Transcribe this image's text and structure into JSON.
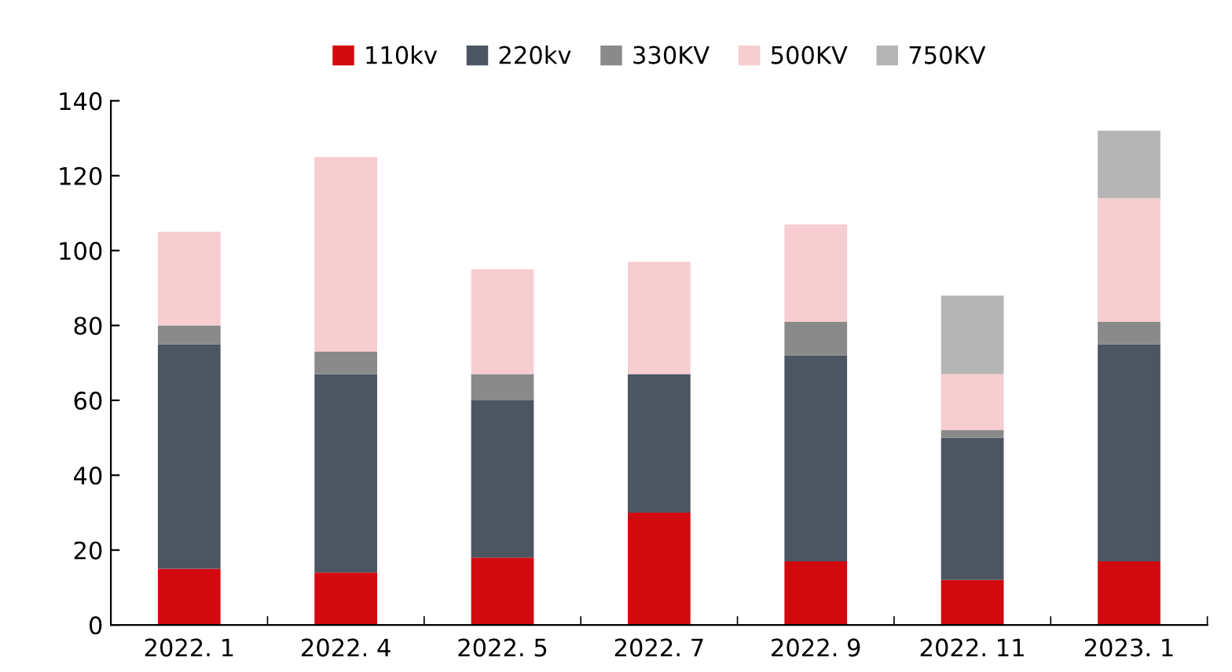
{
  "chart_data": {
    "type": "bar",
    "stacked": true,
    "categories": [
      "2022. 1",
      "2022. 4",
      "2022. 5",
      "2022. 7",
      "2022. 9",
      "2022. 11",
      "2023. 1"
    ],
    "series": [
      {
        "name": "110kv",
        "color": "#d20a10",
        "values": [
          15,
          14,
          18,
          30,
          17,
          12,
          17
        ]
      },
      {
        "name": "220kv",
        "color": "#4c5663",
        "values": [
          60,
          53,
          42,
          37,
          55,
          38,
          58
        ]
      },
      {
        "name": "330KV",
        "color": "#8a8a8a",
        "values": [
          5,
          6,
          7,
          0,
          9,
          2,
          6
        ]
      },
      {
        "name": "500KV",
        "color": "#f6cdd0",
        "values": [
          25,
          52,
          28,
          30,
          26,
          15,
          33
        ]
      },
      {
        "name": "750KV",
        "color": "#b5b5b5",
        "values": [
          0,
          0,
          0,
          0,
          0,
          21,
          18
        ]
      }
    ],
    "ylim": [
      0,
      140
    ],
    "yticks": [
      0,
      20,
      40,
      60,
      80,
      100,
      120,
      140
    ],
    "grid": false,
    "legend": "top"
  }
}
